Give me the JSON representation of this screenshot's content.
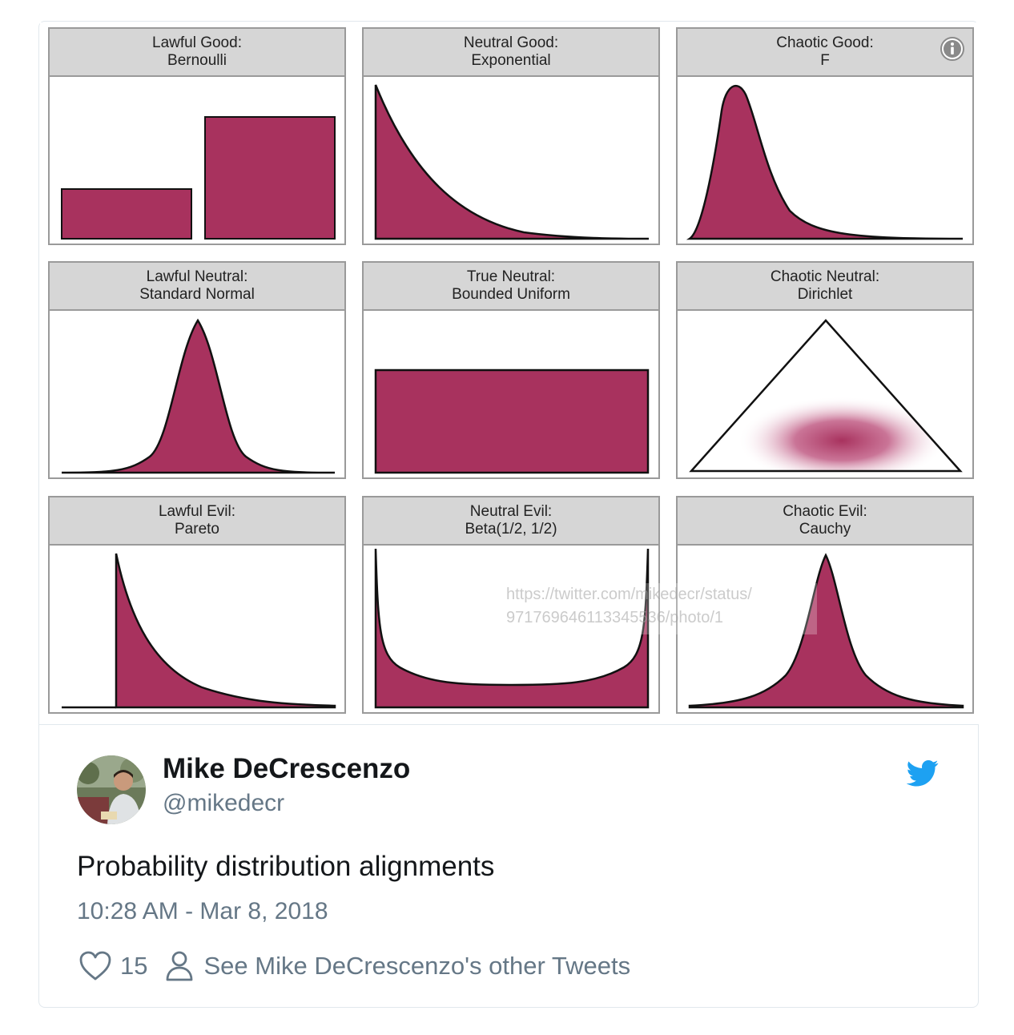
{
  "colors": {
    "fill": "#a8325e",
    "header_bg": "#d6d6d6",
    "text_secondary": "#657786",
    "twitter_blue": "#1da1f2"
  },
  "image": {
    "panels": [
      {
        "line1": "Lawful Good:",
        "line2": "Bernoulli"
      },
      {
        "line1": "Neutral Good:",
        "line2": "Exponential"
      },
      {
        "line1": "Chaotic Good:",
        "line2": "F"
      },
      {
        "line1": "Lawful Neutral:",
        "line2": "Standard Normal"
      },
      {
        "line1": "True Neutral:",
        "line2": "Bounded Uniform"
      },
      {
        "line1": "Chaotic Neutral:",
        "line2": "Dirichlet"
      },
      {
        "line1": "Lawful Evil:",
        "line2": "Pareto"
      },
      {
        "line1": "Neutral Evil:",
        "line2": "Beta(1/2, 1/2)"
      },
      {
        "line1": "Chaotic Evil:",
        "line2": "Cauchy"
      }
    ],
    "url_overlay_line1": "https://twitter.com/mikedecr/status/",
    "url_overlay_line2": "971769646113345536/photo/1",
    "info_icon": "info-icon"
  },
  "author": {
    "name": "Mike DeCrescenzo",
    "handle": "@mikedecr"
  },
  "tweet": {
    "text": "Probability distribution alignments",
    "timestamp": "10:28 AM - Mar 8, 2018"
  },
  "actions": {
    "like_count": "15",
    "see_more": "See Mike DeCrescenzo's other Tweets",
    "like_icon": "heart-icon",
    "profile_icon": "person-icon",
    "brand_icon": "twitter-bird-icon"
  }
}
